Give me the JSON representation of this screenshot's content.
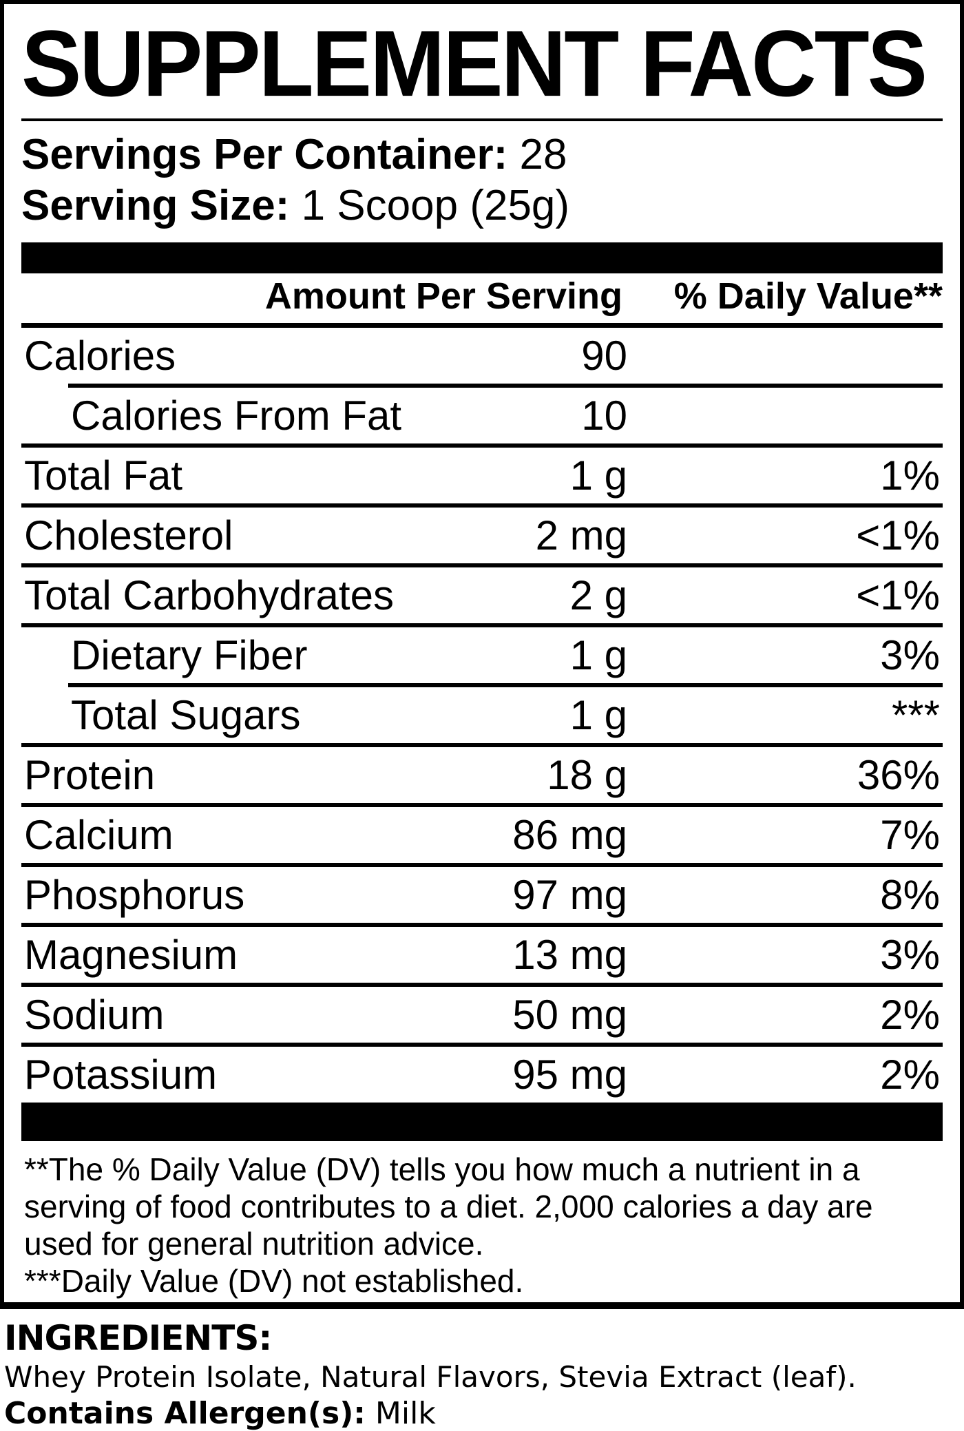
{
  "title": "SUPPLEMENT FACTS",
  "serving_info": {
    "servings_label": "Servings Per Container:",
    "servings_value": "28",
    "size_label": "Serving Size:",
    "size_value": "1 Scoop (25g)"
  },
  "table": {
    "amount_header": "Amount Per Serving",
    "dv_header": "% Daily Value**",
    "rows": [
      {
        "name": "Calories",
        "amount": "90",
        "dv": "",
        "indent": false,
        "sep": "none"
      },
      {
        "name": "Calories From Fat",
        "amount": "10",
        "dv": "",
        "indent": true,
        "sep": "indent"
      },
      {
        "name": "Total Fat",
        "amount": "1 g",
        "dv": "1%",
        "indent": false,
        "sep": "full"
      },
      {
        "name": "Cholesterol",
        "amount": "2 mg",
        "dv": "<1%",
        "indent": false,
        "sep": "full"
      },
      {
        "name": "Total Carbohydrates",
        "amount": "2 g",
        "dv": "<1%",
        "indent": false,
        "sep": "full"
      },
      {
        "name": "Dietary Fiber",
        "amount": "1 g",
        "dv": "3%",
        "indent": true,
        "sep": "full"
      },
      {
        "name": "Total Sugars",
        "amount": "1 g",
        "dv": "***",
        "indent": true,
        "sep": "indent"
      },
      {
        "name": "Protein",
        "amount": "18 g",
        "dv": "36%",
        "indent": false,
        "sep": "full"
      },
      {
        "name": "Calcium",
        "amount": "86 mg",
        "dv": "7%",
        "indent": false,
        "sep": "full"
      },
      {
        "name": "Phosphorus",
        "amount": "97 mg",
        "dv": "8%",
        "indent": false,
        "sep": "full"
      },
      {
        "name": "Magnesium",
        "amount": "13 mg",
        "dv": "3%",
        "indent": false,
        "sep": "full"
      },
      {
        "name": "Sodium",
        "amount": "50 mg",
        "dv": "2%",
        "indent": false,
        "sep": "full"
      },
      {
        "name": "Potassium",
        "amount": "95 mg",
        "dv": "2%",
        "indent": false,
        "sep": "full"
      }
    ]
  },
  "footnote": {
    "lines": [
      "**The % Daily Value (DV) tells you how much a nutrient in a",
      "serving of food contributes to a diet. 2,000 calories a day are",
      "used for general nutrition advice.",
      "***Daily Value (DV) not established."
    ]
  },
  "ingredients": {
    "heading": "INGREDIENTS:",
    "list": "Whey Protein Isolate, Natural Flavors, Stevia Extract (leaf).",
    "allergen_label": "Contains Allergen(s):",
    "allergen_value": "Milk"
  },
  "colors": {
    "text": "#000000",
    "background": "#ffffff"
  }
}
